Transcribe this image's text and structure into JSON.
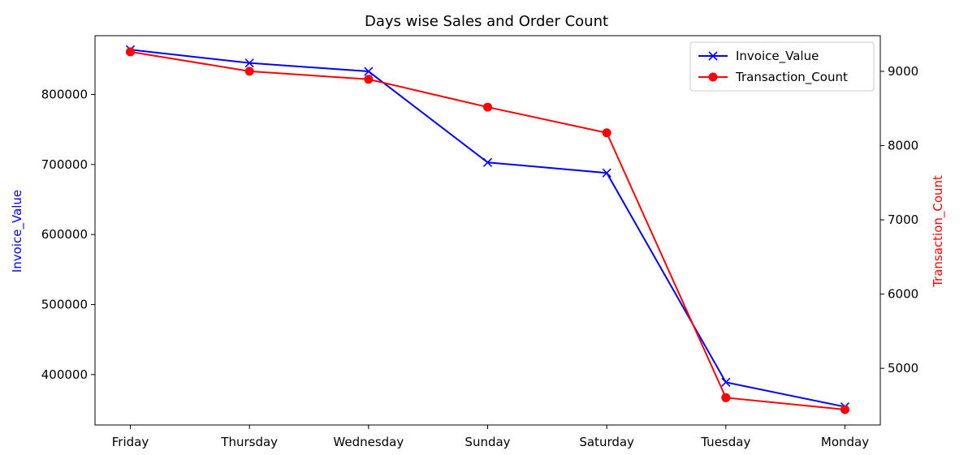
{
  "chart_data": {
    "type": "line",
    "title": "Days wise Sales and Order Count",
    "categories": [
      "Friday",
      "Thursday",
      "Wednesday",
      "Sunday",
      "Saturday",
      "Tuesday",
      "Monday"
    ],
    "series": [
      {
        "name": "Invoice_Value",
        "axis": "left",
        "color": "#0000ff",
        "marker": "x",
        "values": [
          864000,
          845000,
          833000,
          703000,
          688000,
          389000,
          354000
        ]
      },
      {
        "name": "Transaction_Count",
        "axis": "right",
        "color": "#ff0000",
        "marker": "circle",
        "values": [
          9263,
          9001,
          8893,
          8518,
          8172,
          4605,
          4445
        ]
      }
    ],
    "left_axis": {
      "label": "Invoice_Value",
      "label_color": "#0000ff",
      "ylim": [
        328000,
        884000
      ],
      "ticks": [
        400000,
        500000,
        600000,
        700000,
        800000
      ],
      "tick_labels": [
        "400000",
        "500000",
        "600000",
        "700000",
        "800000"
      ]
    },
    "right_axis": {
      "label": "Transaction_Count",
      "label_color": "#ff0000",
      "ylim": [
        4237,
        9480
      ],
      "ticks": [
        5000,
        6000,
        7000,
        8000,
        9000
      ],
      "tick_labels": [
        "5000",
        "6000",
        "7000",
        "8000",
        "9000"
      ]
    },
    "legend_position": "top-right",
    "grid": false
  }
}
